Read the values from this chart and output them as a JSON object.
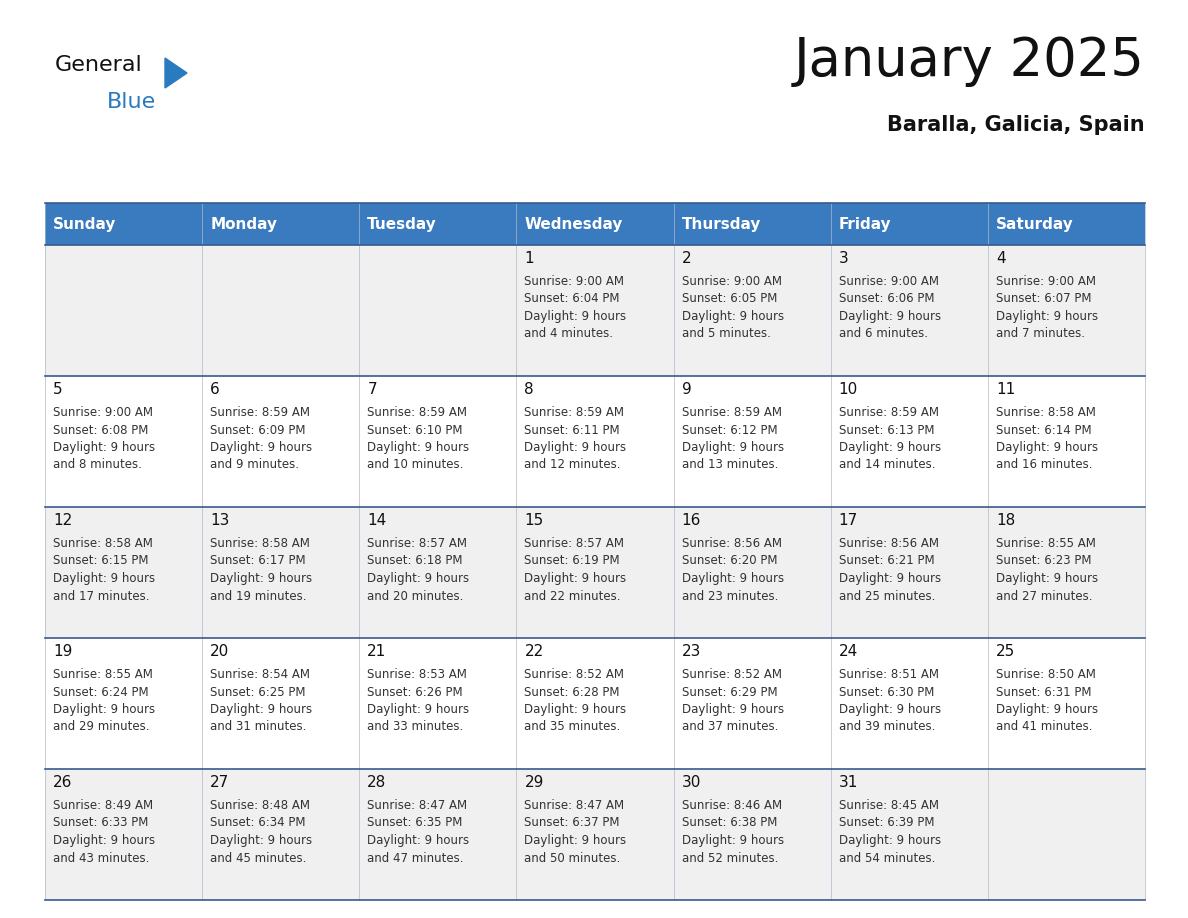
{
  "title": "January 2025",
  "subtitle": "Baralla, Galicia, Spain",
  "days_of_week": [
    "Sunday",
    "Monday",
    "Tuesday",
    "Wednesday",
    "Thursday",
    "Friday",
    "Saturday"
  ],
  "header_bg": "#3a7abf",
  "header_text": "#ffffff",
  "row_bg_light": "#f0f0f0",
  "row_bg_white": "#ffffff",
  "cell_border_color": "#b0b8c8",
  "row_border_color": "#3a5a8a",
  "day_number_color": "#111111",
  "text_color": "#333333",
  "title_color": "#111111",
  "subtitle_color": "#111111",
  "logo_general_color": "#111111",
  "logo_blue_color": "#2a7abf",
  "title_fontsize": 38,
  "subtitle_fontsize": 15,
  "header_fontsize": 11,
  "day_num_fontsize": 11,
  "cell_fontsize": 8.5,
  "weeks": [
    {
      "days": [
        {
          "day": null,
          "sunrise": null,
          "sunset": null,
          "daylight": null
        },
        {
          "day": null,
          "sunrise": null,
          "sunset": null,
          "daylight": null
        },
        {
          "day": null,
          "sunrise": null,
          "sunset": null,
          "daylight": null
        },
        {
          "day": 1,
          "sunrise": "9:00 AM",
          "sunset": "6:04 PM",
          "daylight": "9 hours\nand 4 minutes."
        },
        {
          "day": 2,
          "sunrise": "9:00 AM",
          "sunset": "6:05 PM",
          "daylight": "9 hours\nand 5 minutes."
        },
        {
          "day": 3,
          "sunrise": "9:00 AM",
          "sunset": "6:06 PM",
          "daylight": "9 hours\nand 6 minutes."
        },
        {
          "day": 4,
          "sunrise": "9:00 AM",
          "sunset": "6:07 PM",
          "daylight": "9 hours\nand 7 minutes."
        }
      ]
    },
    {
      "days": [
        {
          "day": 5,
          "sunrise": "9:00 AM",
          "sunset": "6:08 PM",
          "daylight": "9 hours\nand 8 minutes."
        },
        {
          "day": 6,
          "sunrise": "8:59 AM",
          "sunset": "6:09 PM",
          "daylight": "9 hours\nand 9 minutes."
        },
        {
          "day": 7,
          "sunrise": "8:59 AM",
          "sunset": "6:10 PM",
          "daylight": "9 hours\nand 10 minutes."
        },
        {
          "day": 8,
          "sunrise": "8:59 AM",
          "sunset": "6:11 PM",
          "daylight": "9 hours\nand 12 minutes."
        },
        {
          "day": 9,
          "sunrise": "8:59 AM",
          "sunset": "6:12 PM",
          "daylight": "9 hours\nand 13 minutes."
        },
        {
          "day": 10,
          "sunrise": "8:59 AM",
          "sunset": "6:13 PM",
          "daylight": "9 hours\nand 14 minutes."
        },
        {
          "day": 11,
          "sunrise": "8:58 AM",
          "sunset": "6:14 PM",
          "daylight": "9 hours\nand 16 minutes."
        }
      ]
    },
    {
      "days": [
        {
          "day": 12,
          "sunrise": "8:58 AM",
          "sunset": "6:15 PM",
          "daylight": "9 hours\nand 17 minutes."
        },
        {
          "day": 13,
          "sunrise": "8:58 AM",
          "sunset": "6:17 PM",
          "daylight": "9 hours\nand 19 minutes."
        },
        {
          "day": 14,
          "sunrise": "8:57 AM",
          "sunset": "6:18 PM",
          "daylight": "9 hours\nand 20 minutes."
        },
        {
          "day": 15,
          "sunrise": "8:57 AM",
          "sunset": "6:19 PM",
          "daylight": "9 hours\nand 22 minutes."
        },
        {
          "day": 16,
          "sunrise": "8:56 AM",
          "sunset": "6:20 PM",
          "daylight": "9 hours\nand 23 minutes."
        },
        {
          "day": 17,
          "sunrise": "8:56 AM",
          "sunset": "6:21 PM",
          "daylight": "9 hours\nand 25 minutes."
        },
        {
          "day": 18,
          "sunrise": "8:55 AM",
          "sunset": "6:23 PM",
          "daylight": "9 hours\nand 27 minutes."
        }
      ]
    },
    {
      "days": [
        {
          "day": 19,
          "sunrise": "8:55 AM",
          "sunset": "6:24 PM",
          "daylight": "9 hours\nand 29 minutes."
        },
        {
          "day": 20,
          "sunrise": "8:54 AM",
          "sunset": "6:25 PM",
          "daylight": "9 hours\nand 31 minutes."
        },
        {
          "day": 21,
          "sunrise": "8:53 AM",
          "sunset": "6:26 PM",
          "daylight": "9 hours\nand 33 minutes."
        },
        {
          "day": 22,
          "sunrise": "8:52 AM",
          "sunset": "6:28 PM",
          "daylight": "9 hours\nand 35 minutes."
        },
        {
          "day": 23,
          "sunrise": "8:52 AM",
          "sunset": "6:29 PM",
          "daylight": "9 hours\nand 37 minutes."
        },
        {
          "day": 24,
          "sunrise": "8:51 AM",
          "sunset": "6:30 PM",
          "daylight": "9 hours\nand 39 minutes."
        },
        {
          "day": 25,
          "sunrise": "8:50 AM",
          "sunset": "6:31 PM",
          "daylight": "9 hours\nand 41 minutes."
        }
      ]
    },
    {
      "days": [
        {
          "day": 26,
          "sunrise": "8:49 AM",
          "sunset": "6:33 PM",
          "daylight": "9 hours\nand 43 minutes."
        },
        {
          "day": 27,
          "sunrise": "8:48 AM",
          "sunset": "6:34 PM",
          "daylight": "9 hours\nand 45 minutes."
        },
        {
          "day": 28,
          "sunrise": "8:47 AM",
          "sunset": "6:35 PM",
          "daylight": "9 hours\nand 47 minutes."
        },
        {
          "day": 29,
          "sunrise": "8:47 AM",
          "sunset": "6:37 PM",
          "daylight": "9 hours\nand 50 minutes."
        },
        {
          "day": 30,
          "sunrise": "8:46 AM",
          "sunset": "6:38 PM",
          "daylight": "9 hours\nand 52 minutes."
        },
        {
          "day": 31,
          "sunrise": "8:45 AM",
          "sunset": "6:39 PM",
          "daylight": "9 hours\nand 54 minutes."
        },
        {
          "day": null,
          "sunrise": null,
          "sunset": null,
          "daylight": null
        }
      ]
    }
  ]
}
